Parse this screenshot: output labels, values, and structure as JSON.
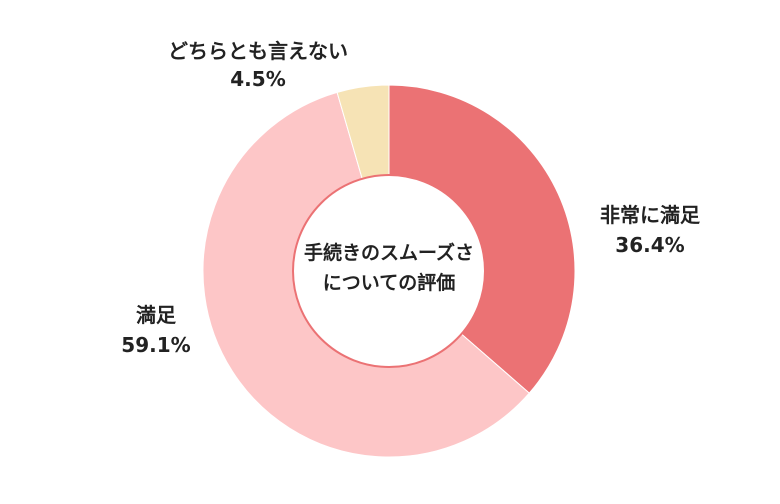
{
  "chart_data": {
    "type": "pie",
    "variant": "donut",
    "title": "手続きのスムーズさについての評価",
    "title_lines": [
      "手続きのスムーズさ",
      "についての評価"
    ],
    "categories": [
      "非常に満足",
      "満足",
      "どちらとも言えない"
    ],
    "values": [
      36.4,
      59.1,
      4.5
    ],
    "value_labels": [
      "36.4%",
      "59.1%",
      "4.5%"
    ],
    "colors": [
      "#eb7274",
      "#fdc6c7",
      "#f6e3b5"
    ],
    "start_angle": "12 o'clock",
    "direction": "clockwise",
    "legend": "none"
  }
}
